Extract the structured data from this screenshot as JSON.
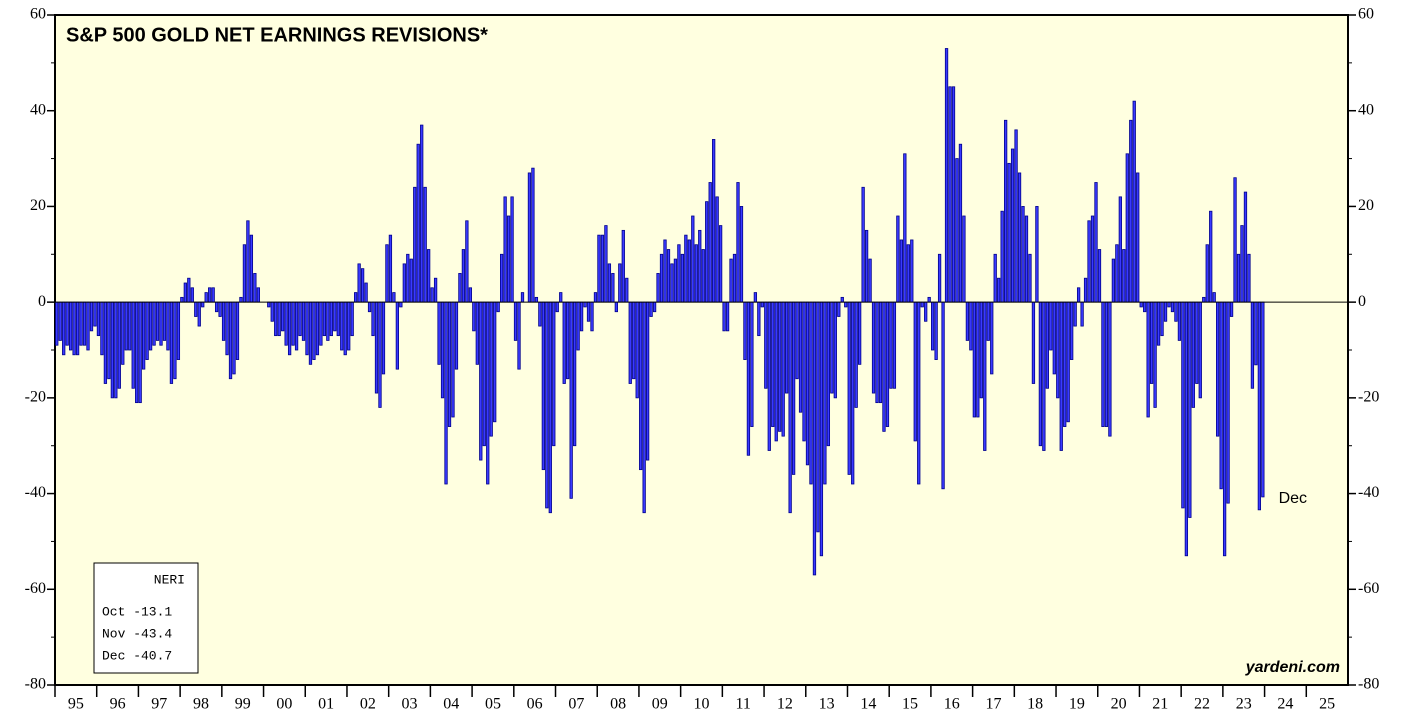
{
  "chart_data": {
    "type": "bar",
    "title": "S&P 500 GOLD NET EARNINGS REVISIONS*",
    "x_labels": [
      "95",
      "96",
      "97",
      "98",
      "99",
      "00",
      "01",
      "02",
      "03",
      "04",
      "05",
      "06",
      "07",
      "08",
      "09",
      "10",
      "11",
      "12",
      "13",
      "14",
      "15",
      "16",
      "17",
      "18",
      "19",
      "20",
      "21",
      "22",
      "23",
      "24",
      "25"
    ],
    "values": [
      -9,
      -8,
      -11,
      -9,
      -10,
      -11,
      -11,
      -9,
      -9,
      -10,
      -6,
      -5,
      -7,
      -11,
      -17,
      -16,
      -20,
      -20,
      -18,
      -13,
      -10,
      -10,
      -18,
      -21,
      -21,
      -14,
      -12,
      -10,
      -9,
      -8,
      -9,
      -8,
      -10,
      -17,
      -16,
      -12,
      1,
      4,
      5,
      3,
      -3,
      -5,
      -1,
      2,
      3,
      3,
      -2,
      -3,
      -8,
      -11,
      -16,
      -15,
      -12,
      1,
      12,
      17,
      14,
      6,
      3,
      0,
      0,
      -1,
      -4,
      -7,
      -7,
      -6,
      -9,
      -11,
      -9,
      -10,
      -7,
      -8,
      -11,
      -13,
      -12,
      -11,
      -9,
      -7,
      -8,
      -7,
      -6,
      -7,
      -10,
      -11,
      -10,
      -7,
      2,
      8,
      7,
      4,
      -2,
      -7,
      -19,
      -22,
      -15,
      12,
      14,
      2,
      -14,
      -1,
      8,
      10,
      9,
      24,
      33,
      37,
      24,
      11,
      3,
      5,
      -13,
      -20,
      -38,
      -26,
      -24,
      -14,
      6,
      11,
      17,
      3,
      -6,
      -13,
      -33,
      -30,
      -38,
      -28,
      -25,
      -2,
      10,
      22,
      18,
      22,
      -8,
      -14,
      2,
      0,
      27,
      28,
      1,
      -5,
      -35,
      -43,
      -44,
      -30,
      -2,
      2,
      -17,
      -16,
      -41,
      -30,
      -10,
      -6,
      -1,
      -4,
      -6,
      2,
      14,
      14,
      16,
      8,
      6,
      -2,
      8,
      15,
      5,
      -17,
      -16,
      -20,
      -35,
      -44,
      -33,
      -3,
      -2,
      6,
      10,
      13,
      11,
      8,
      9,
      12,
      10,
      14,
      13,
      18,
      12,
      15,
      11,
      21,
      25,
      34,
      22,
      16,
      -6,
      -6,
      9,
      10,
      25,
      20,
      -12,
      -32,
      -26,
      2,
      -7,
      -1,
      -18,
      -31,
      -26,
      -29,
      -27,
      -28,
      -19,
      -44,
      -36,
      -16,
      -23,
      -29,
      -34,
      -38,
      -57,
      -48,
      -53,
      -38,
      -30,
      -19,
      -20,
      -3,
      1,
      -1,
      -36,
      -38,
      -22,
      -13,
      24,
      15,
      9,
      -19,
      -21,
      -21,
      -27,
      -26,
      -18,
      -18,
      18,
      13,
      31,
      12,
      13,
      -29,
      -38,
      -1,
      -4,
      1,
      -10,
      -12,
      10,
      -39,
      53,
      45,
      45,
      30,
      33,
      18,
      -8,
      -10,
      -24,
      -24,
      -20,
      -31,
      -8,
      -15,
      10,
      5,
      19,
      38,
      29,
      32,
      36,
      27,
      20,
      18,
      10,
      -17,
      20,
      -30,
      -31,
      -18,
      -10,
      -15,
      -20,
      -31,
      -26,
      -25,
      -12,
      -5,
      3,
      -5,
      5,
      17,
      18,
      25,
      11,
      -26,
      -26,
      -28,
      9,
      12,
      22,
      11,
      31,
      38,
      42,
      27,
      -1,
      -2,
      -24,
      -17,
      -22,
      -9,
      -7,
      -4,
      -1,
      -2,
      -4,
      -8,
      -43,
      -53,
      -45,
      -22,
      -17,
      -20,
      1,
      12,
      19,
      2,
      -28,
      -39,
      -53,
      -42,
      -3,
      26,
      10,
      16,
      23,
      10,
      -18,
      -13.1,
      -43.4,
      -40.7
    ],
    "color": "#3a3aff",
    "ylim": [
      -80,
      60
    ],
    "yticks": [
      -80,
      -60,
      -40,
      -20,
      0,
      20,
      40,
      60
    ],
    "legend": {
      "title": "NERI",
      "rows": [
        "Oct -13.1",
        "Nov -43.4",
        "Dec -40.7"
      ]
    },
    "annotation": "Dec",
    "source": "yardeni.com"
  }
}
